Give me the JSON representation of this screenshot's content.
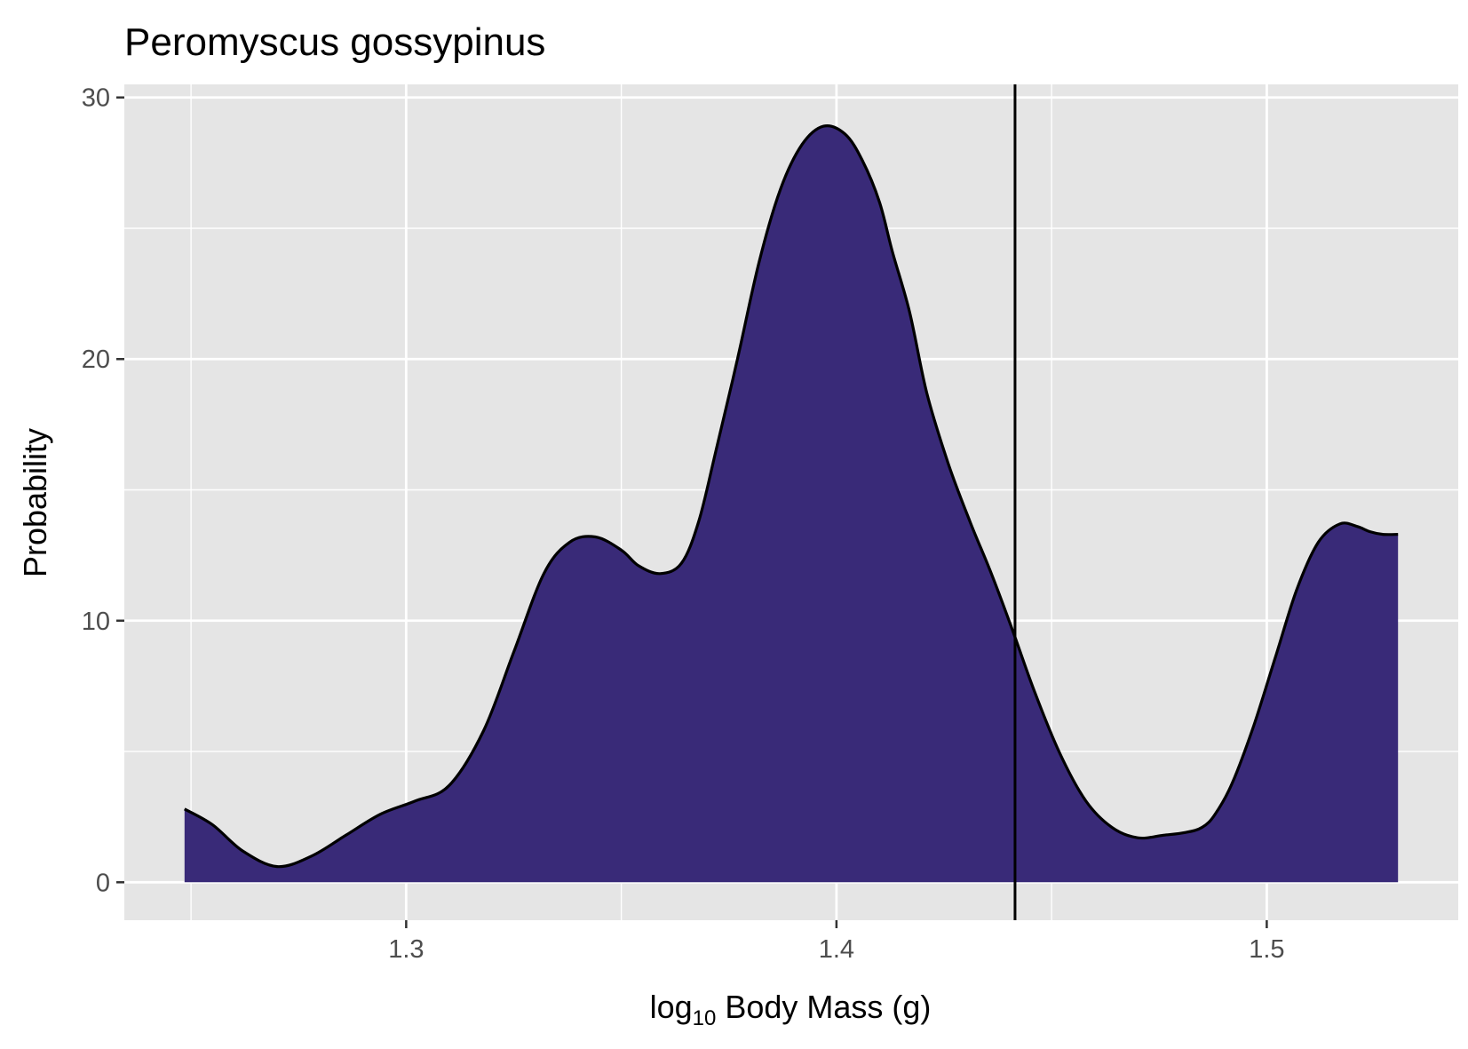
{
  "chart_data": {
    "type": "area",
    "title": "Peromyscus gossypinus",
    "xlabel": {
      "prefix": "log",
      "subscript": "10",
      "suffix": " Body Mass (g)"
    },
    "ylabel": "Probability",
    "xlim": [
      1.2345,
      1.5445
    ],
    "ylim": [
      -1.45,
      30.5
    ],
    "x_ticks": [
      1.3,
      1.4,
      1.5
    ],
    "x_tick_labels": [
      "1.3",
      "1.4",
      "1.5"
    ],
    "x_minor_ticks": [
      1.25,
      1.35,
      1.45
    ],
    "y_ticks": [
      0,
      10,
      20,
      30
    ],
    "y_tick_labels": [
      "0",
      "10",
      "20",
      "30"
    ],
    "y_minor_ticks": [
      5,
      15,
      25
    ],
    "grid": true,
    "fill_color": "#392a78",
    "line_color": "#000000",
    "panel_color": "#e5e5e5",
    "grid_color": "#ffffff",
    "vline_x": 1.4415,
    "series": [
      {
        "x": [
          1.2485,
          1.255,
          1.262,
          1.27,
          1.278,
          1.286,
          1.294,
          1.302,
          1.31,
          1.318,
          1.325,
          1.332,
          1.338,
          1.344,
          1.35,
          1.354,
          1.359,
          1.364,
          1.368,
          1.372,
          1.377,
          1.382,
          1.387,
          1.392,
          1.397,
          1.402,
          1.406,
          1.41,
          1.413,
          1.417,
          1.421,
          1.426,
          1.431,
          1.436,
          1.441,
          1.446,
          1.452,
          1.458,
          1.464,
          1.47,
          1.476,
          1.481,
          1.485,
          1.488,
          1.492,
          1.497,
          1.502,
          1.507,
          1.512,
          1.517,
          1.521,
          1.524,
          1.527,
          1.5305
        ],
        "y": [
          2.8,
          2.2,
          1.2,
          0.6,
          1.0,
          1.8,
          2.6,
          3.1,
          3.7,
          5.8,
          8.8,
          11.8,
          13.0,
          13.2,
          12.7,
          12.1,
          11.8,
          12.2,
          13.8,
          16.5,
          20.0,
          23.7,
          26.5,
          28.2,
          28.9,
          28.6,
          27.6,
          26.0,
          24.1,
          21.8,
          18.7,
          16.0,
          13.8,
          11.8,
          9.6,
          7.3,
          4.9,
          3.1,
          2.1,
          1.7,
          1.8,
          1.9,
          2.1,
          2.6,
          3.8,
          6.0,
          8.6,
          11.2,
          13.0,
          13.7,
          13.6,
          13.4,
          13.3,
          13.3
        ]
      }
    ]
  }
}
